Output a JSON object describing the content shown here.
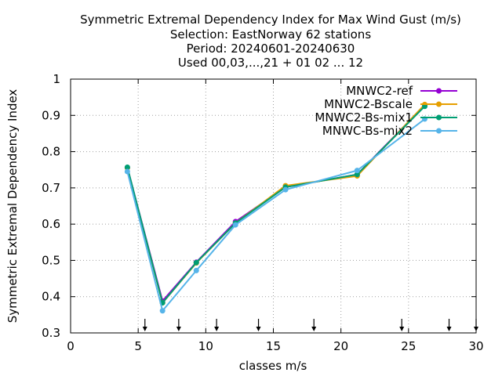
{
  "chart_data": {
    "type": "line",
    "title_lines": [
      "Symmetric Extremal Dependency Index  for Max Wind Gust (m/s)",
      "Selection: EastNorway     62 stations",
      "Period: 20240601-20240630",
      "Used 00,03,...,21 + 01 02 ... 12"
    ],
    "xlabel": "classes m/s",
    "ylabel": "Symmetric Extremal Dependency Index",
    "xlim": [
      0,
      30
    ],
    "ylim": [
      0.3,
      1.0
    ],
    "xticks": [
      0,
      5,
      10,
      15,
      20,
      25,
      30
    ],
    "yticks": [
      0.3,
      0.4,
      0.5,
      0.6,
      0.7,
      0.8,
      0.9,
      1.0
    ],
    "ytick_labels": [
      "0.3",
      "0.4",
      "0.5",
      "0.6",
      "0.7",
      "0.8",
      "0.9",
      "1"
    ],
    "grid": true,
    "legend_position": "top-right",
    "threshold_arrows_x": [
      5.5,
      8.0,
      10.8,
      13.9,
      18.0,
      24.5,
      28.0,
      30.0
    ],
    "series": [
      {
        "name": "MNWC2-ref",
        "color": "#9400d3",
        "x": [
          4.2,
          6.8,
          9.3,
          12.2,
          15.9,
          21.2,
          26.2
        ],
        "y": [
          0.756,
          0.388,
          0.495,
          0.607,
          0.702,
          0.737,
          0.928
        ]
      },
      {
        "name": "MNWC2-Bscale",
        "color": "#e69f00",
        "x": [
          4.2,
          6.8,
          9.3,
          12.2,
          15.9,
          21.2,
          26.2
        ],
        "y": [
          0.755,
          0.383,
          0.493,
          0.603,
          0.706,
          0.733,
          0.93
        ]
      },
      {
        "name": "MNWC2-Bs-mix1",
        "color": "#009e73",
        "x": [
          4.2,
          6.8,
          9.3,
          12.2,
          15.9,
          21.2,
          26.2
        ],
        "y": [
          0.757,
          0.383,
          0.494,
          0.603,
          0.702,
          0.737,
          0.925
        ]
      },
      {
        "name": "MNWC-Bs-mix2",
        "color": "#56b4e9",
        "x": [
          4.2,
          6.8,
          9.3,
          12.2,
          15.9,
          21.2,
          26.2
        ],
        "y": [
          0.745,
          0.361,
          0.472,
          0.598,
          0.695,
          0.748,
          0.89
        ]
      }
    ]
  }
}
